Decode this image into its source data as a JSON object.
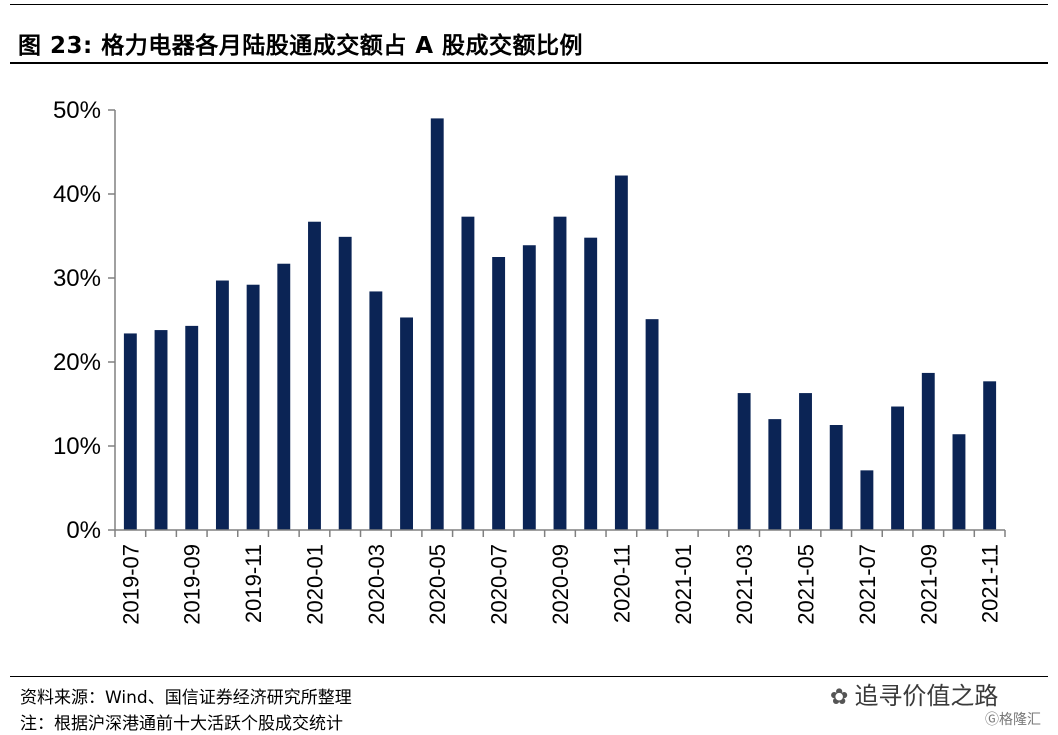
{
  "title": "图 23:  格力电器各月陆股通成交额占 A 股成交额比例",
  "source": "资料来源：Wind、国信证券经济研究所整理",
  "note": "注：根据沪深港通前十大活跃个股成交统计",
  "watermark": {
    "text": "追寻价值之路",
    "icon": "wechat-icon",
    "brand": "格隆汇",
    "brand_icon": "gelonghui-logo-icon"
  },
  "colors": {
    "bar": "#0b2455",
    "axis": "#808080"
  },
  "chart_data": {
    "type": "bar",
    "title": "",
    "xlabel": "",
    "ylabel": "",
    "ylim": [
      0,
      50
    ],
    "yticks": [
      "0%",
      "10%",
      "20%",
      "30%",
      "40%",
      "50%"
    ],
    "categories": [
      "2019-07",
      "2019-08",
      "2019-09",
      "2019-10",
      "2019-11",
      "2019-12",
      "2020-01",
      "2020-02",
      "2020-03",
      "2020-04",
      "2020-05",
      "2020-06",
      "2020-07",
      "2020-08",
      "2020-09",
      "2020-10",
      "2020-11",
      "2020-12",
      "2021-01",
      "2021-02",
      "2021-03",
      "2021-04",
      "2021-05",
      "2021-06",
      "2021-07",
      "2021-08",
      "2021-09",
      "2021-10",
      "2021-11"
    ],
    "tick_labels": [
      "2019-07",
      "2019-09",
      "2019-11",
      "2020-01",
      "2020-03",
      "2020-05",
      "2020-07",
      "2020-09",
      "2020-11",
      "2021-01",
      "2021-03",
      "2021-05",
      "2021-07",
      "2021-09",
      "2021-11"
    ],
    "values": [
      23.4,
      23.8,
      24.3,
      29.7,
      29.2,
      31.7,
      36.7,
      34.9,
      28.4,
      25.3,
      49.0,
      37.3,
      32.5,
      33.9,
      37.3,
      34.8,
      42.2,
      25.1,
      null,
      null,
      16.3,
      13.2,
      16.3,
      12.5,
      7.1,
      14.7,
      18.7,
      11.4,
      17.7
    ],
    "grid": false,
    "legend": "none"
  }
}
